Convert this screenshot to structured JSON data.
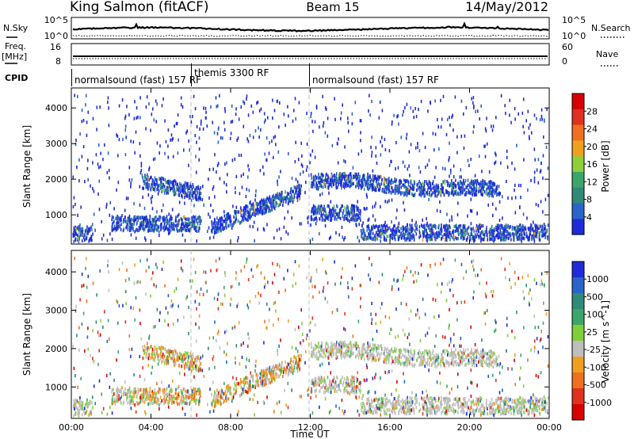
{
  "header": {
    "title": "King Salmon (fitACF)",
    "beam": "Beam 15",
    "date": "14/May/2012"
  },
  "nsky_panel": {
    "left_label": "N.Sky",
    "right_label": "N.Search",
    "y_ticks_left": [
      "10^5",
      "10^0"
    ],
    "y_ticks_right": [
      "10^5",
      "10^0"
    ]
  },
  "freq_panel": {
    "left_label_line1": "Freq.",
    "left_label_line2": "[MHz]",
    "right_label": "Nave",
    "y_ticks_left": [
      "16",
      "8"
    ],
    "y_ticks_right": [
      "60",
      "0"
    ]
  },
  "cpid_panel": {
    "label": "CPID",
    "segments": [
      {
        "text": "normalsound (fast) 157 RF",
        "start_hour": 0,
        "end_hour": 6
      },
      {
        "text": "themis 3300 RF",
        "start_hour": 6,
        "end_hour": 12
      },
      {
        "text": "normalsound (fast) 157 RF",
        "start_hour": 12,
        "end_hour": 24
      }
    ]
  },
  "x_axis": {
    "label": "Time UT",
    "ticks": [
      "00:00",
      "04:00",
      "08:00",
      "12:00",
      "16:00",
      "20:00",
      "00:00"
    ]
  },
  "colors": {
    "power": [
      "#1f2bd9",
      "#2a64c8",
      "#2f8a7a",
      "#3ca66a",
      "#8fcf3a",
      "#f0a020",
      "#f07020",
      "#e03020",
      "#d80000"
    ],
    "velocity": [
      "#1f2bd9",
      "#2a64c8",
      "#2f8a7a",
      "#3ca66a",
      "#7fcf3a",
      "#bfbfbf",
      "#f0a020",
      "#f07020",
      "#e03020",
      "#d80000"
    ]
  },
  "chart_data": [
    {
      "type": "heatmap",
      "name": "Power",
      "ylabel": "Slant Range [km]",
      "y_ticks": [
        1000,
        2000,
        3000,
        4000
      ],
      "ylim": [
        180,
        4560
      ],
      "xlim": [
        0,
        24
      ],
      "colorbar": {
        "label": "Power [dB]",
        "ticks": [
          "28",
          "24",
          "20",
          "16",
          "12",
          "8",
          "4"
        ]
      },
      "features": [
        {
          "desc": "low echo band",
          "t_start": 0,
          "t_end": 1.0,
          "range_km": 500
        },
        {
          "desc": "band",
          "t_start": 2.0,
          "t_end": 6.5,
          "range_km": 800
        },
        {
          "desc": "band",
          "t_start": 3.5,
          "t_end": 6.5,
          "range_km": 1950
        },
        {
          "desc": "rising band",
          "t_start": 7.0,
          "t_end": 11.5,
          "range_km": 1100
        },
        {
          "desc": "band",
          "t_start": 12.0,
          "t_end": 21.5,
          "range_km": 1850
        },
        {
          "desc": "band",
          "t_start": 12.0,
          "t_end": 14.5,
          "range_km": 1100
        },
        {
          "desc": "band",
          "t_start": 14.5,
          "t_end": 24.0,
          "range_km": 550
        }
      ]
    },
    {
      "type": "heatmap",
      "name": "Velocity",
      "ylabel": "Slant Range [km]",
      "y_ticks": [
        1000,
        2000,
        3000,
        4000
      ],
      "ylim": [
        180,
        4560
      ],
      "xlim": [
        0,
        24
      ],
      "colorbar": {
        "label": "Velocity [m s^-1]",
        "ticks": [
          "1000",
          "500",
          "100",
          "25",
          "-25",
          "-100",
          "-500",
          "-1000"
        ]
      }
    }
  ]
}
